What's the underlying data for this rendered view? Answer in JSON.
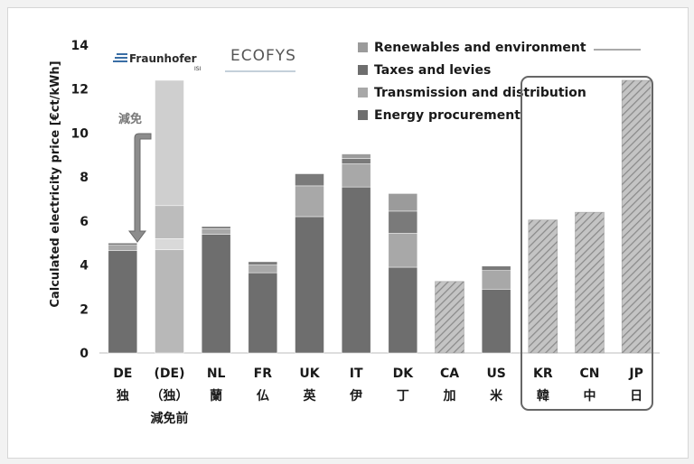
{
  "chart_data": {
    "type": "bar",
    "stacked": true,
    "ylabel": "Calculated electricity price [€ct/kWh]",
    "ylim": [
      0,
      14
    ],
    "yticks": [
      0,
      2,
      4,
      6,
      8,
      10,
      12,
      14
    ],
    "grid": false,
    "legend_position": "top-right",
    "categories": [
      {
        "code": "DE",
        "jp": "独",
        "jp2": ""
      },
      {
        "code": "(DE)",
        "jp": "（独）",
        "jp2": "減免前"
      },
      {
        "code": "NL",
        "jp": "蘭",
        "jp2": ""
      },
      {
        "code": "FR",
        "jp": "仏",
        "jp2": ""
      },
      {
        "code": "UK",
        "jp": "英",
        "jp2": ""
      },
      {
        "code": "IT",
        "jp": "伊",
        "jp2": ""
      },
      {
        "code": "DK",
        "jp": "丁",
        "jp2": ""
      },
      {
        "code": "CA",
        "jp": "加",
        "jp2": ""
      },
      {
        "code": "US",
        "jp": "米",
        "jp2": ""
      },
      {
        "code": "KR",
        "jp": "韓",
        "jp2": ""
      },
      {
        "code": "CN",
        "jp": "中",
        "jp2": ""
      },
      {
        "code": "JP",
        "jp": "日",
        "jp2": ""
      }
    ],
    "series": [
      {
        "name": "Energy procurement",
        "color": "#6e6e6e",
        "values": [
          4.65,
          0,
          5.4,
          3.65,
          6.2,
          7.55,
          3.9,
          0,
          2.9,
          0,
          0,
          0
        ]
      },
      {
        "name": "Transmission and distribution",
        "color": "#a8a8a8",
        "values": [
          0.25,
          0,
          0.25,
          0.35,
          1.4,
          1.05,
          1.55,
          0,
          0.85,
          0,
          0,
          0
        ]
      },
      {
        "name": "Taxes and levies",
        "color": "#7a7a7a",
        "values": [
          0.1,
          0,
          0.1,
          0.15,
          0.55,
          0.25,
          1.0,
          0,
          0.2,
          0,
          0,
          0
        ]
      },
      {
        "name": "Renewables and environment",
        "color": "#9b9b9b",
        "values": [
          0,
          0,
          0,
          0,
          0,
          0.2,
          0.8,
          0,
          0,
          0,
          0,
          0
        ]
      }
    ],
    "pre_reduction_de": [
      {
        "segment": "Energy procurement",
        "value": 4.7
      },
      {
        "segment": "Transmission and distribution",
        "value": 0.5
      },
      {
        "segment": "Taxes and levies",
        "value": 1.5
      },
      {
        "segment": "Renewables and environment",
        "value": 5.7
      }
    ],
    "total_only": [
      {
        "category": "CA",
        "value": 3.25
      },
      {
        "category": "KR",
        "value": 6.05
      },
      {
        "category": "CN",
        "value": 6.4
      },
      {
        "category": "JP",
        "value": 12.4
      }
    ],
    "annotation": "減免",
    "highlight_box": [
      "KR",
      "CN",
      "JP"
    ]
  },
  "logos": {
    "fraunhofer": "Fraunhofer",
    "fraunhofer_sub": "ISI",
    "ecofys": "ECOFYS"
  },
  "colors": {
    "pale_bar": "#c9c9c9",
    "hatch_bg": "#c4c4c4",
    "hatch_line": "#8a8a8a",
    "box_border": "#666666"
  }
}
